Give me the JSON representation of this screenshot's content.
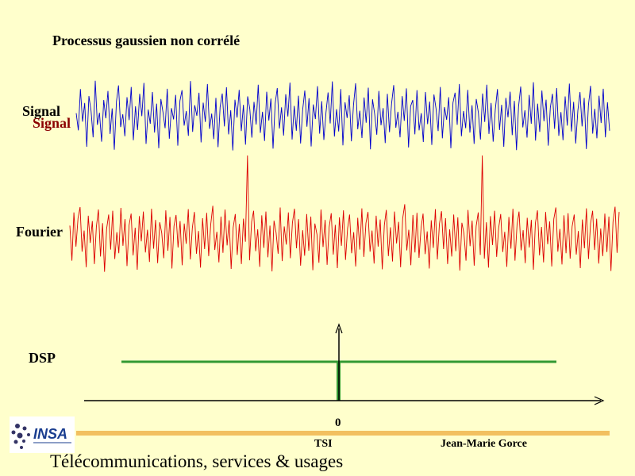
{
  "title": "Processus gaussien non corrélé",
  "chart_data": [
    {
      "type": "line",
      "label_lines": [
        "Signal",
        "Signal"
      ],
      "series": [
        {
          "color": "#0000cc",
          "values": [
            0.05,
            -0.42,
            0.71,
            -0.18,
            0.33,
            -0.87,
            0.52,
            0.12,
            -0.61,
            0.94,
            -0.27,
            0.06,
            -0.73,
            0.41,
            -0.09,
            0.66,
            -0.52,
            0.18,
            -0.95,
            0.37,
            0.81,
            -0.33,
            0.02,
            -0.58,
            0.49,
            -0.14,
            0.77,
            -0.69,
            0.24,
            -0.41,
            0.58,
            -0.03,
            0.88,
            -0.79,
            0.15,
            -0.24,
            0.63,
            -0.48,
            0.31,
            -0.91,
            0.44,
            0.08,
            -0.36,
            0.72,
            -0.65,
            0.19,
            -0.12,
            0.55,
            -0.84,
            0.39,
            0.68,
            -0.29,
            0.11,
            -0.57,
            0.93,
            -0.46,
            0.27,
            -0.02,
            0.61,
            -0.75,
            0.34,
            -0.19,
            0.85,
            -0.38,
            0.04,
            -0.66,
            0.47,
            -0.88,
            0.22,
            0.59,
            -0.31,
            0.76,
            -0.53,
            0.13,
            -0.97,
            0.42,
            -0.07,
            0.69,
            -0.44,
            0.28,
            -0.81,
            0.51,
            0.17,
            -0.62,
            0.36,
            -0.26,
            0.83,
            -0.49,
            0.09,
            -0.71,
            0.64,
            -0.15,
            0.45,
            -0.92,
            0.32,
            0.74,
            -0.37,
            0.21,
            -0.56,
            0.57,
            -0.04,
            0.89,
            -0.67,
            0.25,
            -0.43,
            0.53,
            -0.78,
            0.14,
            0.67,
            -0.32,
            0.46,
            -0.86,
            0.29,
            -0.11,
            0.79,
            -0.51,
            0.38,
            -0.68,
            0.07,
            0.62,
            -0.23,
            0.92,
            -0.59,
            0.16,
            -0.45,
            0.71,
            -0.83,
            0.35,
            -0.08,
            0.54,
            -0.72,
            0.26,
            0.87,
            -0.39,
            0.12,
            -0.63,
            0.48,
            -0.21,
            0.75,
            -0.94,
            0.43,
            0.03,
            -0.54,
            0.66,
            -0.28,
            0.19,
            -0.77,
            0.58,
            -0.47,
            0.31,
            0.82,
            -0.35,
            0.09,
            -0.61,
            0.52,
            -0.16,
            0.73,
            -0.89,
            0.24,
            0.41,
            -0.53,
            0.68,
            -0.42,
            0.05,
            -0.74,
            0.63,
            -0.25,
            0.37,
            -0.82,
            0.56,
            0.18,
            -0.44,
            0.77,
            -0.64,
            0.22,
            -0.13,
            0.49,
            -0.91,
            0.34,
            0.61,
            -0.27,
            0.85,
            -0.58,
            0.11,
            -0.36,
            0.69,
            -0.48,
            0.27,
            -0.79,
            0.44,
            0.06,
            -0.67,
            0.59,
            -0.19,
            0.83,
            -0.52,
            0.33,
            -0.73,
            0.15,
            0.71,
            -0.41,
            0.28,
            -0.87,
            0.47,
            -0.06,
            0.64,
            -0.55,
            0.39,
            -0.96,
            0.23,
            0.78,
            -0.34,
            0.13,
            -0.62,
            0.55,
            -0.24,
            0.9,
            -0.7,
            0.31,
            -0.46,
            0.67,
            -0.17,
            0.42,
            -0.84,
            0.2,
            0.58,
            -0.38,
            0.74,
            -0.57,
            0.08,
            -0.69,
            0.51,
            -0.29,
            0.86,
            -0.45,
            0.36,
            -0.78,
            0.12,
            0.63,
            -0.31,
            0.47,
            -0.93,
            0.26,
            0.8,
            -0.51,
            0.17,
            -0.64,
            0.53,
            -0.22,
            0.72,
            -0.61,
            0.35,
            -0.43
          ]
        }
      ]
    },
    {
      "type": "line",
      "label": "Fourier",
      "series": [
        {
          "color": "#dd0000",
          "values": [
            0.3,
            -0.55,
            0.62,
            -0.21,
            0.48,
            0.75,
            -0.33,
            0.18,
            -0.71,
            0.54,
            -0.12,
            0.41,
            -0.63,
            0.27,
            0.69,
            -0.45,
            0.36,
            -0.82,
            0.22,
            0.57,
            -0.28,
            0.66,
            -0.51,
            0.14,
            -0.37,
            0.73,
            -0.19,
            0.46,
            -0.68,
            0.31,
            0.59,
            -0.42,
            0.25,
            -0.77,
            0.53,
            -0.08,
            0.64,
            -0.35,
            0.2,
            -0.58,
            0.71,
            -0.26,
            0.44,
            -0.61,
            0.38,
            0.12,
            -0.49,
            0.67,
            -0.31,
            0.51,
            -0.74,
            0.29,
            0.56,
            -0.23,
            0.41,
            -0.66,
            0.35,
            -0.14,
            0.7,
            -0.52,
            0.24,
            0.63,
            -0.38,
            0.17,
            -0.72,
            0.48,
            -0.27,
            0.61,
            -0.44,
            0.33,
            0.78,
            -0.29,
            0.15,
            -0.59,
            0.52,
            -0.36,
            0.69,
            -0.18,
            0.43,
            -0.75,
            0.26,
            0.58,
            -0.41,
            0.34,
            -0.63,
            0.47,
            -0.09,
            1.0,
            -0.54,
            0.39,
            0.66,
            -0.32,
            0.21,
            -0.7,
            0.55,
            -0.24,
            0.64,
            -0.47,
            0.3,
            -0.81,
            0.42,
            0.13,
            -0.38,
            0.74,
            -0.56,
            0.28,
            -0.16,
            0.62,
            -0.49,
            0.37,
            0.71,
            -0.25,
            0.46,
            -0.67,
            0.19,
            -0.43,
            0.58,
            -0.31,
            0.52,
            -0.78,
            0.35,
            0.09,
            -0.6,
            0.69,
            -0.22,
            0.44,
            -0.65,
            0.27,
            0.6,
            -0.4,
            0.32,
            -0.73,
            0.5,
            -0.19,
            0.67,
            -0.53,
            0.23,
            0.57,
            -0.37,
            0.14,
            -0.69,
            0.49,
            -0.28,
            0.72,
            -0.46,
            0.36,
            0.63,
            -0.33,
            0.18,
            -0.62,
            0.54,
            -0.21,
            0.45,
            -0.76,
            0.31,
            0.68,
            -0.44,
            0.26,
            -0.57,
            0.64,
            -0.13,
            0.39,
            -0.71,
            0.47,
            0.82,
            -0.3,
            0.2,
            -0.66,
            0.56,
            -0.35,
            0.61,
            -0.48,
            0.25,
            0.59,
            -0.39,
            0.16,
            -0.74,
            0.43,
            -0.24,
            0.7,
            -0.52,
            0.34,
            0.65,
            -0.27,
            0.48,
            -0.63,
            0.21,
            -0.45,
            0.57,
            -0.32,
            0.5,
            -0.79,
            0.37,
            0.11,
            -0.55,
            0.68,
            -0.2,
            0.42,
            -0.67,
            0.29,
            0.62,
            -0.41,
            1.0,
            -0.5,
            0.38,
            -0.72,
            0.53,
            -0.17,
            0.66,
            -0.46,
            0.24,
            0.58,
            -0.34,
            0.15,
            -0.7,
            0.51,
            -0.26,
            0.71,
            -0.55,
            0.32,
            0.64,
            -0.3,
            0.19,
            -0.61,
            0.49,
            -0.23,
            0.44,
            -0.77,
            0.36,
            0.67,
            -0.42,
            0.27,
            -0.59,
            0.63,
            -0.15,
            0.4,
            -0.69,
            0.46,
            0.74,
            -0.33,
            0.22,
            -0.64,
            0.55,
            -0.37,
            0.6,
            -0.5,
            0.28,
            0.57,
            -0.4,
            0.17,
            -0.73,
            0.45,
            -0.25,
            0.72,
            -0.51,
            0.35,
            0.66,
            -0.29,
            0.47,
            -0.62,
            0.23,
            -0.44,
            0.59,
            -0.34,
            0.52,
            -0.8,
            0.39,
            0.76,
            -0.36,
            0.63
          ]
        }
      ]
    },
    {
      "type": "line",
      "label": "DSP",
      "x_tick_labels": [
        "0"
      ],
      "series": [
        {
          "color": "#339933",
          "x": [
            -1,
            1
          ],
          "y": [
            1,
            1
          ]
        }
      ],
      "impulse": {
        "x": 0,
        "color": "#339933"
      }
    }
  ],
  "footer": {
    "logo_text": "INSA",
    "left": "TSI",
    "right": "Jean-Marie Gorce",
    "course": "Télécommunications, services & usages"
  },
  "colors": {
    "background": "#ffffcc",
    "footer_bar": "#f2c060"
  }
}
